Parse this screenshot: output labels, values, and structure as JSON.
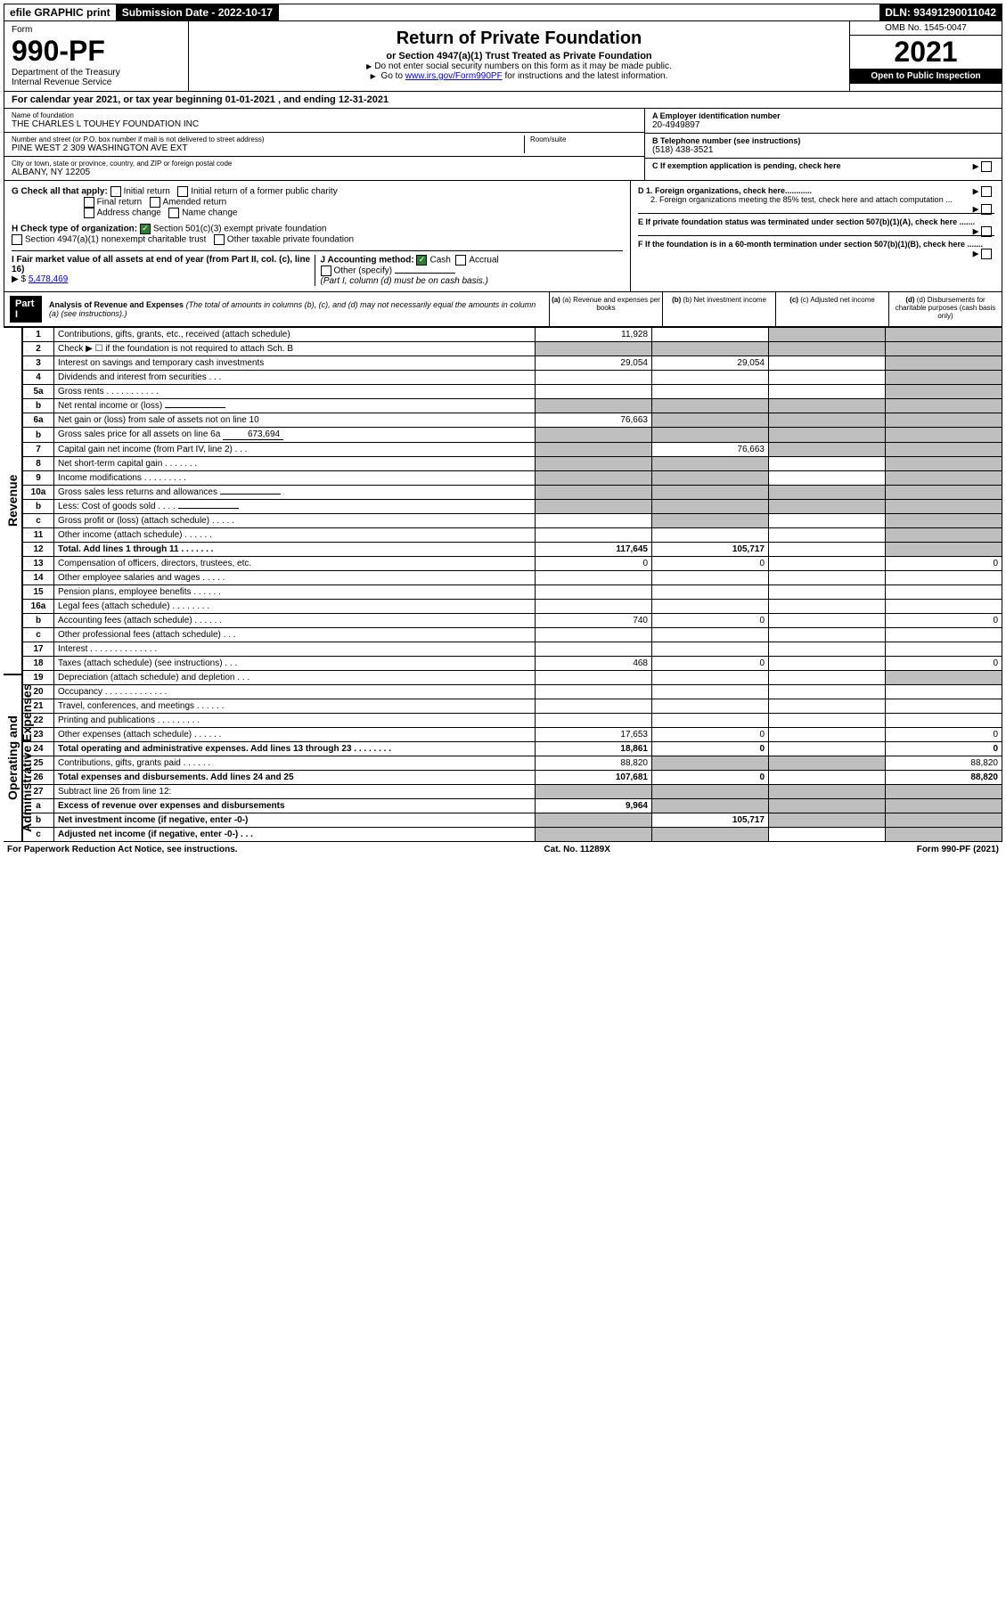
{
  "topbar": {
    "efile_label": "efile GRAPHIC print",
    "submission_label": "Submission Date - 2022-10-17",
    "dln_label": "DLN: 93491290011042"
  },
  "header": {
    "form_word": "Form",
    "form_number": "990-PF",
    "dept1": "Department of the Treasury",
    "dept2": "Internal Revenue Service",
    "title": "Return of Private Foundation",
    "subtitle": "or Section 4947(a)(1) Trust Treated as Private Foundation",
    "note1": "Do not enter social security numbers on this form as it may be made public.",
    "note2_pre": "Go to ",
    "note2_link": "www.irs.gov/Form990PF",
    "note2_post": " for instructions and the latest information.",
    "omb": "OMB No. 1545-0047",
    "year": "2021",
    "open": "Open to Public Inspection"
  },
  "calendar": {
    "text_pre": "For calendar year 2021, or tax year beginning ",
    "begin": "01-01-2021",
    "mid": " , and ending ",
    "end": "12-31-2021"
  },
  "entity": {
    "name_label": "Name of foundation",
    "name": "THE CHARLES L TOUHEY FOUNDATION INC",
    "addr_label": "Number and street (or P.O. box number if mail is not delivered to street address)",
    "addr": "PINE WEST 2 309 WASHINGTON AVE EXT",
    "room_label": "Room/suite",
    "city_label": "City or town, state or province, country, and ZIP or foreign postal code",
    "city": "ALBANY, NY  12205",
    "ein_label": "A Employer identification number",
    "ein": "20-4949897",
    "phone_label": "B Telephone number (see instructions)",
    "phone": "(518) 438-3521",
    "c_label": "C If exemption application is pending, check here"
  },
  "checks": {
    "g_label": "G Check all that apply:",
    "g1": "Initial return",
    "g2": "Initial return of a former public charity",
    "g3": "Final return",
    "g4": "Amended return",
    "g5": "Address change",
    "g6": "Name change",
    "h_label": "H Check type of organization:",
    "h1": "Section 501(c)(3) exempt private foundation",
    "h2": "Section 4947(a)(1) nonexempt charitable trust",
    "h3": "Other taxable private foundation",
    "i_label": "I Fair market value of all assets at end of year (from Part II, col. (c), line 16)",
    "i_value": "5,478,469",
    "j_label": "J Accounting method:",
    "j1": "Cash",
    "j2": "Accrual",
    "j3": "Other (specify)",
    "j_note": "(Part I, column (d) must be on cash basis.)",
    "d1": "D 1. Foreign organizations, check here............",
    "d2": "2. Foreign organizations meeting the 85% test, check here and attach computation ...",
    "e": "E If private foundation status was terminated under section 507(b)(1)(A), check here .......",
    "f": "F If the foundation is in a 60-month termination under section 507(b)(1)(B), check here ......."
  },
  "part1": {
    "label": "Part I",
    "title": "Analysis of Revenue and Expenses",
    "note": "(The total of amounts in columns (b), (c), and (d) may not necessarily equal the amounts in column (a) (see instructions).)",
    "col_a": "(a) Revenue and expenses per books",
    "col_b": "(b) Net investment income",
    "col_c": "(c) Adjusted net income",
    "col_d": "(d) Disbursements for charitable purposes (cash basis only)"
  },
  "side_labels": {
    "revenue": "Revenue",
    "expenses": "Operating and Administrative Expenses"
  },
  "rows": [
    {
      "n": "1",
      "desc": "Contributions, gifts, grants, etc., received (attach schedule)",
      "a": "11,928",
      "b": "",
      "c": "",
      "d": "",
      "shade_c": true,
      "shade_d": true
    },
    {
      "n": "2",
      "desc": "Check ▶ ☐ if the foundation is not required to attach Sch. B",
      "a": "",
      "b": "",
      "c": "",
      "d": "",
      "shade_a": true,
      "shade_b": true,
      "shade_c": true,
      "shade_d": true
    },
    {
      "n": "3",
      "desc": "Interest on savings and temporary cash investments",
      "a": "29,054",
      "b": "29,054",
      "c": "",
      "d": "",
      "shade_d": true
    },
    {
      "n": "4",
      "desc": "Dividends and interest from securities  .  .  .",
      "a": "",
      "b": "",
      "c": "",
      "d": "",
      "shade_d": true
    },
    {
      "n": "5a",
      "desc": "Gross rents  .  .  .  .  .  .  .  .  .  .  .",
      "a": "",
      "b": "",
      "c": "",
      "d": "",
      "shade_d": true
    },
    {
      "n": "b",
      "desc": "Net rental income or (loss)",
      "a": "",
      "b": "",
      "c": "",
      "d": "",
      "shade_a": true,
      "shade_b": true,
      "shade_c": true,
      "shade_d": true,
      "inline": true
    },
    {
      "n": "6a",
      "desc": "Net gain or (loss) from sale of assets not on line 10",
      "a": "76,663",
      "b": "",
      "c": "",
      "d": "",
      "shade_b": true,
      "shade_c": true,
      "shade_d": true
    },
    {
      "n": "b",
      "desc": "Gross sales price for all assets on line 6a",
      "a": "",
      "b": "",
      "c": "",
      "d": "",
      "shade_a": true,
      "shade_b": true,
      "shade_c": true,
      "shade_d": true,
      "inline": true,
      "inline_val": "673,694"
    },
    {
      "n": "7",
      "desc": "Capital gain net income (from Part IV, line 2)  .  .  .",
      "a": "",
      "b": "76,663",
      "c": "",
      "d": "",
      "shade_a": true,
      "shade_c": true,
      "shade_d": true
    },
    {
      "n": "8",
      "desc": "Net short-term capital gain  .  .  .  .  .  .  .",
      "a": "",
      "b": "",
      "c": "",
      "d": "",
      "shade_a": true,
      "shade_b": true,
      "shade_d": true
    },
    {
      "n": "9",
      "desc": "Income modifications  .  .  .  .  .  .  .  .  .",
      "a": "",
      "b": "",
      "c": "",
      "d": "",
      "shade_a": true,
      "shade_b": true,
      "shade_d": true
    },
    {
      "n": "10a",
      "desc": "Gross sales less returns and allowances",
      "a": "",
      "b": "",
      "c": "",
      "d": "",
      "shade_a": true,
      "shade_b": true,
      "shade_c": true,
      "shade_d": true,
      "inline": true
    },
    {
      "n": "b",
      "desc": "Less: Cost of goods sold  .  .  .  .",
      "a": "",
      "b": "",
      "c": "",
      "d": "",
      "shade_a": true,
      "shade_b": true,
      "shade_c": true,
      "shade_d": true,
      "inline": true
    },
    {
      "n": "c",
      "desc": "Gross profit or (loss) (attach schedule)  .  .  .  .  .",
      "a": "",
      "b": "",
      "c": "",
      "d": "",
      "shade_b": true,
      "shade_d": true
    },
    {
      "n": "11",
      "desc": "Other income (attach schedule)  .  .  .  .  .  .",
      "a": "",
      "b": "",
      "c": "",
      "d": "",
      "shade_d": true
    },
    {
      "n": "12",
      "desc": "Total. Add lines 1 through 11  .  .  .  .  .  .  .",
      "a": "117,645",
      "b": "105,717",
      "c": "",
      "d": "",
      "bold": true,
      "shade_d": true
    },
    {
      "n": "13",
      "desc": "Compensation of officers, directors, trustees, etc.",
      "a": "0",
      "b": "0",
      "c": "",
      "d": "0",
      "section": "exp"
    },
    {
      "n": "14",
      "desc": "Other employee salaries and wages  .  .  .  .  .",
      "a": "",
      "b": "",
      "c": "",
      "d": "",
      "section": "exp"
    },
    {
      "n": "15",
      "desc": "Pension plans, employee benefits  .  .  .  .  .  .",
      "a": "",
      "b": "",
      "c": "",
      "d": "",
      "section": "exp"
    },
    {
      "n": "16a",
      "desc": "Legal fees (attach schedule)  .  .  .  .  .  .  .  .",
      "a": "",
      "b": "",
      "c": "",
      "d": "",
      "section": "exp"
    },
    {
      "n": "b",
      "desc": "Accounting fees (attach schedule)  .  .  .  .  .  .",
      "a": "740",
      "b": "0",
      "c": "",
      "d": "0",
      "section": "exp"
    },
    {
      "n": "c",
      "desc": "Other professional fees (attach schedule)  .  .  .",
      "a": "",
      "b": "",
      "c": "",
      "d": "",
      "section": "exp"
    },
    {
      "n": "17",
      "desc": "Interest  .  .  .  .  .  .  .  .  .  .  .  .  .  .",
      "a": "",
      "b": "",
      "c": "",
      "d": "",
      "section": "exp"
    },
    {
      "n": "18",
      "desc": "Taxes (attach schedule) (see instructions)  .  .  .",
      "a": "468",
      "b": "0",
      "c": "",
      "d": "0",
      "section": "exp"
    },
    {
      "n": "19",
      "desc": "Depreciation (attach schedule) and depletion  .  .  .",
      "a": "",
      "b": "",
      "c": "",
      "d": "",
      "shade_d": true,
      "section": "exp"
    },
    {
      "n": "20",
      "desc": "Occupancy  .  .  .  .  .  .  .  .  .  .  .  .  .",
      "a": "",
      "b": "",
      "c": "",
      "d": "",
      "section": "exp"
    },
    {
      "n": "21",
      "desc": "Travel, conferences, and meetings  .  .  .  .  .  .",
      "a": "",
      "b": "",
      "c": "",
      "d": "",
      "section": "exp"
    },
    {
      "n": "22",
      "desc": "Printing and publications  .  .  .  .  .  .  .  .  .",
      "a": "",
      "b": "",
      "c": "",
      "d": "",
      "section": "exp"
    },
    {
      "n": "23",
      "desc": "Other expenses (attach schedule)  .  .  .  .  .  .",
      "a": "17,653",
      "b": "0",
      "c": "",
      "d": "0",
      "section": "exp"
    },
    {
      "n": "24",
      "desc": "Total operating and administrative expenses. Add lines 13 through 23  .  .  .  .  .  .  .  .",
      "a": "18,861",
      "b": "0",
      "c": "",
      "d": "0",
      "bold": true,
      "section": "exp"
    },
    {
      "n": "25",
      "desc": "Contributions, gifts, grants paid  .  .  .  .  .  .",
      "a": "88,820",
      "b": "",
      "c": "",
      "d": "88,820",
      "shade_b": true,
      "shade_c": true,
      "section": "exp"
    },
    {
      "n": "26",
      "desc": "Total expenses and disbursements. Add lines 24 and 25",
      "a": "107,681",
      "b": "0",
      "c": "",
      "d": "88,820",
      "bold": true,
      "section": "exp"
    },
    {
      "n": "27",
      "desc": "Subtract line 26 from line 12:",
      "a": "",
      "b": "",
      "c": "",
      "d": "",
      "shade_a": true,
      "shade_b": true,
      "shade_c": true,
      "shade_d": true,
      "section": "exp"
    },
    {
      "n": "a",
      "desc": "Excess of revenue over expenses and disbursements",
      "a": "9,964",
      "b": "",
      "c": "",
      "d": "",
      "bold": true,
      "shade_b": true,
      "shade_c": true,
      "shade_d": true,
      "section": "exp"
    },
    {
      "n": "b",
      "desc": "Net investment income (if negative, enter -0-)",
      "a": "",
      "b": "105,717",
      "c": "",
      "d": "",
      "bold": true,
      "shade_a": true,
      "shade_c": true,
      "shade_d": true,
      "section": "exp"
    },
    {
      "n": "c",
      "desc": "Adjusted net income (if negative, enter -0-)  .  .  .",
      "a": "",
      "b": "",
      "c": "",
      "d": "",
      "bold": true,
      "shade_a": true,
      "shade_b": true,
      "shade_d": true,
      "section": "exp"
    }
  ],
  "footer": {
    "left": "For Paperwork Reduction Act Notice, see instructions.",
    "mid": "Cat. No. 11289X",
    "right": "Form 990-PF (2021)"
  },
  "colors": {
    "shaded": "#bfbfbf",
    "black": "#000000",
    "link": "#0000cc",
    "check_green": "#2e7d32"
  }
}
